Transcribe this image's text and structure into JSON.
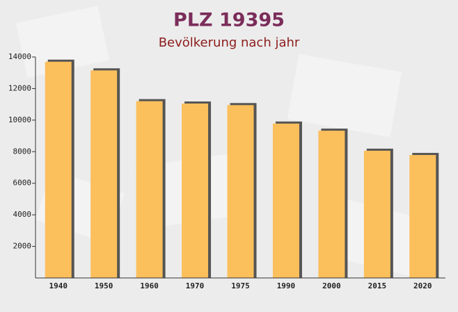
{
  "chart_data": {
    "type": "bar",
    "title": "PLZ 19395",
    "subtitle": "Bevölkerung nach jahr",
    "categories": [
      "1940",
      "1950",
      "1960",
      "1970",
      "1975",
      "1990",
      "2000",
      "2015",
      "2020"
    ],
    "values": [
      13700,
      13150,
      11200,
      11050,
      10950,
      9780,
      9330,
      8060,
      7790
    ],
    "color": "#fbbf5c",
    "ylim": [
      0,
      14000
    ],
    "yticks": [
      2000,
      4000,
      6000,
      8000,
      10000,
      12000,
      14000
    ]
  }
}
